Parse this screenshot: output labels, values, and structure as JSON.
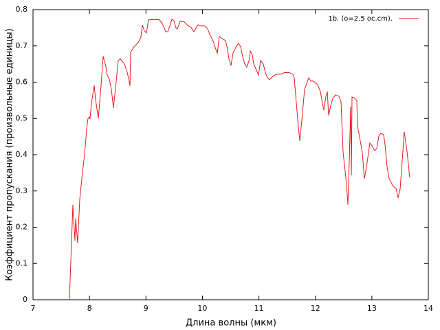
{
  "chart_data": {
    "type": "line",
    "xlabel": "Длина волны (мкм)",
    "ylabel": "Коэффициент пропускания (произвольные единицы)",
    "xlim": [
      7,
      14
    ],
    "xticks": [
      7,
      8,
      9,
      10,
      11,
      12,
      13,
      14
    ],
    "ylim": [
      0,
      0.8
    ],
    "yticks": [
      0,
      0.1,
      0.2,
      0.3,
      0.4,
      0.5,
      0.6,
      0.7,
      0.8
    ],
    "grid": false,
    "legend": "top-right",
    "x": [
      7.645,
      7.706,
      7.743,
      7.755,
      7.791,
      7.828,
      7.877,
      7.913,
      7.95,
      7.974,
      7.998,
      8.01,
      8.035,
      8.084,
      8.108,
      8.157,
      8.205,
      8.242,
      8.29,
      8.315,
      8.351,
      8.388,
      8.424,
      8.461,
      8.51,
      8.546,
      8.619,
      8.668,
      8.704,
      8.717,
      8.729,
      8.79,
      8.863,
      8.911,
      8.936,
      8.972,
      9.009,
      9.045,
      9.155,
      9.24,
      9.289,
      9.35,
      9.386,
      9.435,
      9.459,
      9.496,
      9.532,
      9.557,
      9.605,
      9.678,
      9.751,
      9.8,
      9.849,
      9.922,
      9.971,
      10.044,
      10.092,
      10.129,
      10.19,
      10.263,
      10.299,
      10.348,
      10.409,
      10.445,
      10.47,
      10.506,
      10.543,
      10.604,
      10.64,
      10.677,
      10.713,
      10.75,
      10.786,
      10.835,
      10.847,
      10.884,
      10.908,
      10.957,
      10.993,
      11.03,
      11.078,
      11.115,
      11.151,
      11.188,
      11.261,
      11.31,
      11.395,
      11.444,
      11.529,
      11.602,
      11.626,
      11.663,
      11.699,
      11.724,
      11.76,
      11.809,
      11.882,
      11.918,
      11.967,
      12.04,
      12.089,
      12.125,
      12.15,
      12.186,
      12.211,
      12.235,
      12.271,
      12.308,
      12.357,
      12.418,
      12.454,
      12.491,
      12.551,
      12.576,
      12.6,
      12.625,
      12.637,
      12.649,
      12.685,
      12.734,
      12.746,
      12.795,
      12.831,
      12.868,
      12.905,
      12.965,
      13.002,
      13.051,
      13.087,
      13.124,
      13.16,
      13.209,
      13.233,
      13.27,
      13.306,
      13.367,
      13.428,
      13.465,
      13.501,
      13.574,
      13.623,
      13.671
    ],
    "series": [
      {
        "name": "1b. (o=2.5 oc.cm).",
        "color": "#e41a1c",
        "values": [
          0,
          0.262,
          0.163,
          0.224,
          0.157,
          0.277,
          0.353,
          0.4,
          0.47,
          0.5,
          0.504,
          0.499,
          0.542,
          0.591,
          0.552,
          0.5,
          0.59,
          0.671,
          0.643,
          0.618,
          0.609,
          0.58,
          0.529,
          0.584,
          0.66,
          0.664,
          0.65,
          0.627,
          0.603,
          0.59,
          0.682,
          0.698,
          0.709,
          0.724,
          0.758,
          0.741,
          0.736,
          0.772,
          0.773,
          0.772,
          0.762,
          0.739,
          0.739,
          0.76,
          0.773,
          0.77,
          0.749,
          0.747,
          0.768,
          0.766,
          0.755,
          0.751,
          0.739,
          0.758,
          0.755,
          0.755,
          0.747,
          0.732,
          0.713,
          0.679,
          0.726,
          0.72,
          0.715,
          0.69,
          0.664,
          0.646,
          0.681,
          0.7,
          0.707,
          0.698,
          0.669,
          0.65,
          0.641,
          0.664,
          0.686,
          0.675,
          0.65,
          0.633,
          0.62,
          0.66,
          0.65,
          0.626,
          0.612,
          0.607,
          0.618,
          0.622,
          0.622,
          0.626,
          0.627,
          0.622,
          0.612,
          0.542,
          0.476,
          0.438,
          0.495,
          0.58,
          0.612,
          0.603,
          0.603,
          0.593,
          0.574,
          0.542,
          0.523,
          0.561,
          0.574,
          0.508,
          0.535,
          0.555,
          0.565,
          0.561,
          0.546,
          0.406,
          0.32,
          0.262,
          0.381,
          0.533,
          0.343,
          0.559,
          0.557,
          0.55,
          0.48,
          0.438,
          0.406,
          0.334,
          0.366,
          0.432,
          0.425,
          0.411,
          0.417,
          0.451,
          0.459,
          0.455,
          0.428,
          0.366,
          0.334,
          0.315,
          0.307,
          0.281,
          0.305,
          0.463,
          0.409,
          0.337
        ]
      }
    ]
  }
}
